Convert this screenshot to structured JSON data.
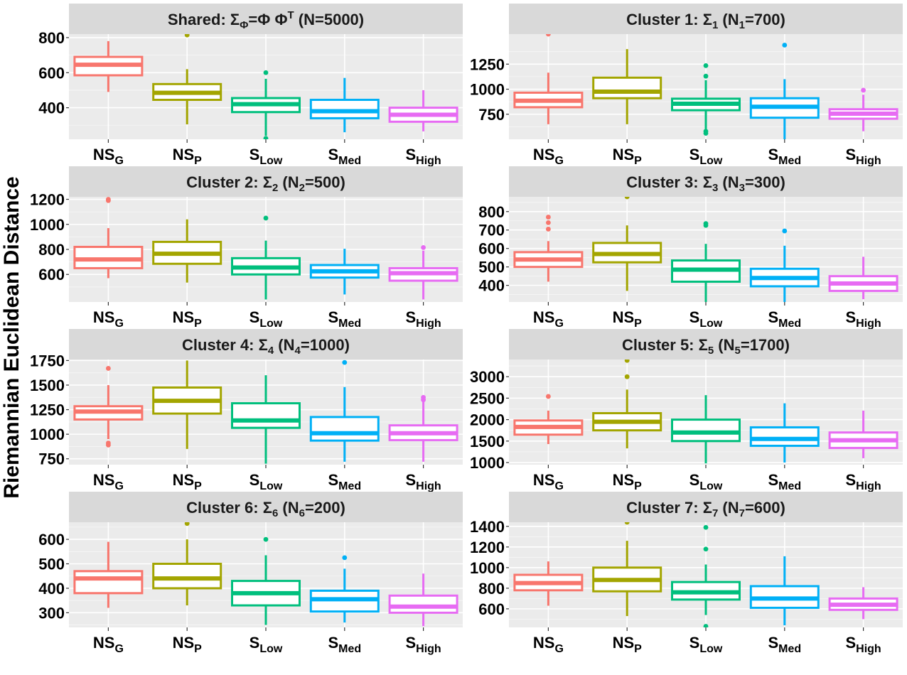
{
  "y_axis_label": "Riemannian Euclidean Distance",
  "categories": [
    {
      "base": "NS",
      "sub": "G"
    },
    {
      "base": "NS",
      "sub": "P"
    },
    {
      "base": "S",
      "sub": "Low"
    },
    {
      "base": "S",
      "sub": "Med"
    },
    {
      "base": "S",
      "sub": "High"
    }
  ],
  "colors": [
    "#F8766D",
    "#A3A500",
    "#00BF7D",
    "#00B0F6",
    "#E76BF3"
  ],
  "chart_data": [
    {
      "type": "boxplot",
      "title": {
        "parts": [
          {
            "t": "Shared: "
          },
          {
            "t": "Σ"
          },
          {
            "t": "Φ",
            "sub": true
          },
          {
            "t": "=Φ Φ"
          },
          {
            "t": "T",
            "sup": true
          },
          {
            "t": " (N=5000)"
          }
        ]
      },
      "ylim": [
        220,
        820
      ],
      "yticks": [
        400,
        600,
        800
      ],
      "boxes": [
        {
          "q1": 585,
          "median": 645,
          "q3": 690,
          "lower": 490,
          "upper": 780,
          "outliers": []
        },
        {
          "q1": 445,
          "median": 485,
          "q3": 535,
          "lower": 305,
          "upper": 620,
          "outliers": [
            815
          ]
        },
        {
          "q1": 375,
          "median": 420,
          "q3": 455,
          "lower": 240,
          "upper": 565,
          "outliers": [
            600,
            225
          ]
        },
        {
          "q1": 340,
          "median": 380,
          "q3": 445,
          "lower": 260,
          "upper": 570,
          "outliers": []
        },
        {
          "q1": 320,
          "median": 360,
          "q3": 400,
          "lower": 265,
          "upper": 500,
          "outliers": []
        }
      ]
    },
    {
      "type": "boxplot",
      "title": {
        "parts": [
          {
            "t": "Cluster 1: "
          },
          {
            "t": "Σ"
          },
          {
            "t": "1",
            "sub": true
          },
          {
            "t": " (N"
          },
          {
            "t": "1",
            "sub": true
          },
          {
            "t": "=700)"
          }
        ]
      },
      "ylim": [
        500,
        1550
      ],
      "yticks": [
        750,
        1000,
        1250
      ],
      "boxes": [
        {
          "q1": 820,
          "median": 885,
          "q3": 965,
          "lower": 650,
          "upper": 1165,
          "outliers": [
            1550
          ]
        },
        {
          "q1": 910,
          "median": 975,
          "q3": 1115,
          "lower": 650,
          "upper": 1400,
          "outliers": []
        },
        {
          "q1": 790,
          "median": 855,
          "q3": 905,
          "lower": 590,
          "upper": 1090,
          "outliers": [
            1235,
            1130,
            580,
            560
          ]
        },
        {
          "q1": 715,
          "median": 825,
          "q3": 910,
          "lower": 500,
          "upper": 1100,
          "outliers": [
            1440
          ]
        },
        {
          "q1": 705,
          "median": 755,
          "q3": 800,
          "lower": 580,
          "upper": 945,
          "outliers": [
            990
          ]
        }
      ]
    },
    {
      "type": "boxplot",
      "title": {
        "parts": [
          {
            "t": "Cluster 2: "
          },
          {
            "t": "Σ"
          },
          {
            "t": "2",
            "sub": true
          },
          {
            "t": " (N"
          },
          {
            "t": "2",
            "sub": true
          },
          {
            "t": "=500)"
          }
        ]
      },
      "ylim": [
        380,
        1220
      ],
      "yticks": [
        600,
        800,
        1000,
        1200
      ],
      "boxes": [
        {
          "q1": 650,
          "median": 720,
          "q3": 820,
          "lower": 570,
          "upper": 970,
          "outliers": [
            1200,
            1190
          ]
        },
        {
          "q1": 685,
          "median": 765,
          "q3": 860,
          "lower": 535,
          "upper": 1040,
          "outliers": []
        },
        {
          "q1": 600,
          "median": 655,
          "q3": 730,
          "lower": 400,
          "upper": 870,
          "outliers": [
            1050
          ]
        },
        {
          "q1": 575,
          "median": 625,
          "q3": 675,
          "lower": 440,
          "upper": 805,
          "outliers": []
        },
        {
          "q1": 550,
          "median": 610,
          "q3": 650,
          "lower": 400,
          "upper": 790,
          "outliers": [
            815
          ]
        }
      ]
    },
    {
      "type": "boxplot",
      "title": {
        "parts": [
          {
            "t": "Cluster 3: "
          },
          {
            "t": "Σ"
          },
          {
            "t": "3",
            "sub": true
          },
          {
            "t": " (N"
          },
          {
            "t": "3",
            "sub": true
          },
          {
            "t": "=300)"
          }
        ]
      },
      "ylim": [
        310,
        880
      ],
      "yticks": [
        400,
        500,
        600,
        700,
        800
      ],
      "boxes": [
        {
          "q1": 500,
          "median": 540,
          "q3": 580,
          "lower": 420,
          "upper": 640,
          "outliers": [
            770,
            740,
            705
          ]
        },
        {
          "q1": 525,
          "median": 570,
          "q3": 630,
          "lower": 370,
          "upper": 725,
          "outliers": [
            880
          ]
        },
        {
          "q1": 420,
          "median": 485,
          "q3": 535,
          "lower": 310,
          "upper": 625,
          "outliers": [
            735,
            725
          ]
        },
        {
          "q1": 395,
          "median": 440,
          "q3": 490,
          "lower": 310,
          "upper": 615,
          "outliers": [
            695
          ]
        },
        {
          "q1": 370,
          "median": 410,
          "q3": 450,
          "lower": 325,
          "upper": 555,
          "outliers": []
        }
      ]
    },
    {
      "type": "boxplot",
      "title": {
        "parts": [
          {
            "t": "Cluster 4: "
          },
          {
            "t": "Σ"
          },
          {
            "t": "4",
            "sub": true
          },
          {
            "t": " (N"
          },
          {
            "t": "4",
            "sub": true
          },
          {
            "t": "=1000)"
          }
        ]
      },
      "ylim": [
        690,
        1760
      ],
      "yticks": [
        750,
        1000,
        1250,
        1500,
        1750
      ],
      "boxes": [
        {
          "q1": 1150,
          "median": 1230,
          "q3": 1285,
          "lower": 950,
          "upper": 1500,
          "outliers": [
            1670,
            910,
            890
          ]
        },
        {
          "q1": 1210,
          "median": 1340,
          "q3": 1475,
          "lower": 850,
          "upper": 1750,
          "outliers": []
        },
        {
          "q1": 1065,
          "median": 1140,
          "q3": 1315,
          "lower": 700,
          "upper": 1600,
          "outliers": []
        },
        {
          "q1": 935,
          "median": 1010,
          "q3": 1175,
          "lower": 720,
          "upper": 1480,
          "outliers": [
            1730
          ]
        },
        {
          "q1": 940,
          "median": 1010,
          "q3": 1090,
          "lower": 720,
          "upper": 1330,
          "outliers": [
            1375,
            1350
          ]
        }
      ]
    },
    {
      "type": "boxplot",
      "title": {
        "parts": [
          {
            "t": "Cluster 5: "
          },
          {
            "t": "Σ"
          },
          {
            "t": "5",
            "sub": true
          },
          {
            "t": " (N"
          },
          {
            "t": "5",
            "sub": true
          },
          {
            "t": "=1700)"
          }
        ]
      },
      "ylim": [
        950,
        3400
      ],
      "yticks": [
        1000,
        1500,
        2000,
        2500,
        3000
      ],
      "boxes": [
        {
          "q1": 1650,
          "median": 1830,
          "q3": 1980,
          "lower": 1430,
          "upper": 2210,
          "outliers": [
            2540
          ]
        },
        {
          "q1": 1750,
          "median": 1950,
          "q3": 2150,
          "lower": 1330,
          "upper": 2700,
          "outliers": [
            3000,
            3380
          ]
        },
        {
          "q1": 1500,
          "median": 1700,
          "q3": 2000,
          "lower": 980,
          "upper": 2570,
          "outliers": []
        },
        {
          "q1": 1390,
          "median": 1550,
          "q3": 1820,
          "lower": 1000,
          "upper": 2380,
          "outliers": []
        },
        {
          "q1": 1340,
          "median": 1520,
          "q3": 1700,
          "lower": 1100,
          "upper": 2210,
          "outliers": []
        }
      ]
    },
    {
      "type": "boxplot",
      "title": {
        "parts": [
          {
            "t": "Cluster 6: "
          },
          {
            "t": "Σ"
          },
          {
            "t": "6",
            "sub": true
          },
          {
            "t": " (N"
          },
          {
            "t": "6",
            "sub": true
          },
          {
            "t": "=200)"
          }
        ]
      },
      "ylim": [
        240,
        670
      ],
      "yticks": [
        300,
        400,
        500,
        600
      ],
      "boxes": [
        {
          "q1": 380,
          "median": 440,
          "q3": 470,
          "lower": 320,
          "upper": 590,
          "outliers": []
        },
        {
          "q1": 400,
          "median": 440,
          "q3": 500,
          "lower": 330,
          "upper": 600,
          "outliers": [
            665
          ]
        },
        {
          "q1": 330,
          "median": 380,
          "q3": 430,
          "lower": 250,
          "upper": 535,
          "outliers": [
            600
          ]
        },
        {
          "q1": 305,
          "median": 355,
          "q3": 390,
          "lower": 260,
          "upper": 480,
          "outliers": [
            525
          ]
        },
        {
          "q1": 300,
          "median": 325,
          "q3": 370,
          "lower": 245,
          "upper": 460,
          "outliers": []
        }
      ]
    },
    {
      "type": "boxplot",
      "title": {
        "parts": [
          {
            "t": "Cluster 7: "
          },
          {
            "t": "Σ"
          },
          {
            "t": "7",
            "sub": true
          },
          {
            "t": " (N"
          },
          {
            "t": "7",
            "sub": true
          },
          {
            "t": "=600)"
          }
        ]
      },
      "ylim": [
        420,
        1440
      ],
      "yticks": [
        600,
        800,
        1000,
        1200,
        1400
      ],
      "boxes": [
        {
          "q1": 780,
          "median": 850,
          "q3": 930,
          "lower": 630,
          "upper": 1060,
          "outliers": []
        },
        {
          "q1": 770,
          "median": 880,
          "q3": 1000,
          "lower": 530,
          "upper": 1260,
          "outliers": [
            1440
          ]
        },
        {
          "q1": 690,
          "median": 760,
          "q3": 860,
          "lower": 540,
          "upper": 1030,
          "outliers": [
            1390,
            1180,
            430
          ]
        },
        {
          "q1": 610,
          "median": 700,
          "q3": 820,
          "lower": 440,
          "upper": 1110,
          "outliers": []
        },
        {
          "q1": 590,
          "median": 640,
          "q3": 700,
          "lower": 500,
          "upper": 810,
          "outliers": []
        }
      ]
    }
  ]
}
